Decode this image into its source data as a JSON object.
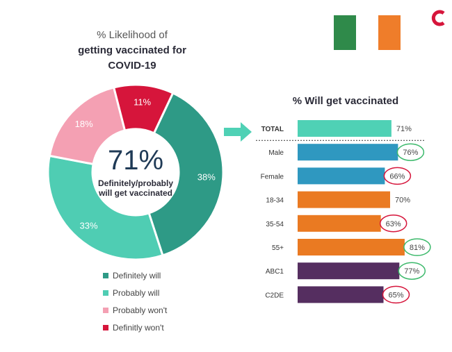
{
  "donut": {
    "title_line1": "% Likelihood of",
    "title_line2": "getting vaccinated for",
    "title_line3": "COVID-19",
    "center_value": "71%",
    "center_label_line1": "Definitely/probably",
    "center_label_line2": "will get vaccinated"
  },
  "legend": [
    {
      "label": "Definitely will",
      "color": "#2e9a86"
    },
    {
      "label": "Probably will",
      "color": "#4fcdb3"
    },
    {
      "label": "Probably won't",
      "color": "#f4a0b3"
    },
    {
      "label": "Definitly won't",
      "color": "#d6153b"
    }
  ],
  "bars_title": "% Will get vaccinated",
  "flag_colors": [
    "#2f8a4a",
    "#ffffff",
    "#ef7d2a"
  ],
  "logo_color": "#d6153b",
  "chart_data": [
    {
      "type": "pie",
      "title": "% Likelihood of getting vaccinated for COVID-19",
      "categories": [
        "Definitely will",
        "Probably will",
        "Probably won't",
        "Definitly won't"
      ],
      "values": [
        38,
        33,
        18,
        11
      ],
      "labels": [
        "38%",
        "33%",
        "18%",
        "11%"
      ],
      "colors": [
        "#2e9a86",
        "#4fcdb3",
        "#f4a0b3",
        "#d6153b"
      ]
    },
    {
      "type": "bar",
      "orientation": "horizontal",
      "title": "% Will get vaccinated",
      "categories": [
        "TOTAL",
        "Male",
        "Female",
        "18-34",
        "35-54",
        "55+",
        "ABC1",
        "C2DE"
      ],
      "values": [
        71,
        76,
        66,
        70,
        63,
        81,
        77,
        65
      ],
      "labels": [
        "71%",
        "76%",
        "66%",
        "70%",
        "63%",
        "81%",
        "77%",
        "65%"
      ],
      "colors": [
        "#4fd1b5",
        "#2f98c0",
        "#2f98c0",
        "#ea7a22",
        "#ea7a22",
        "#ea7a22",
        "#552e60",
        "#552e60"
      ],
      "highlight": [
        "none",
        "up",
        "down",
        "none",
        "down",
        "up",
        "up",
        "down"
      ],
      "highlight_colors": {
        "up": "#3cb96b",
        "down": "#d6153b"
      },
      "xlim": [
        0,
        100
      ]
    }
  ]
}
